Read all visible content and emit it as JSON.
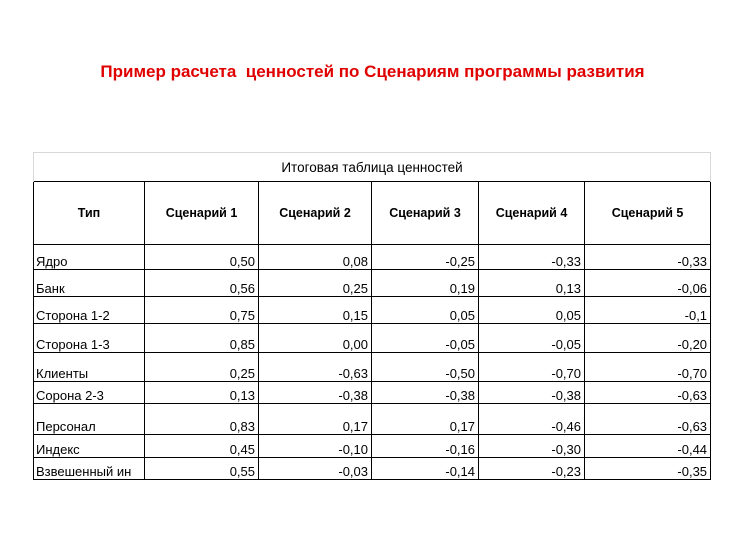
{
  "slide": {
    "title": "Пример расчета  ценностей по Сценариям программы развития"
  },
  "table": {
    "caption": "Итоговая  таблица ценностей",
    "columns": [
      "Тип",
      "Сценарий 1",
      "Сценарий 2",
      "Сценарий 3",
      "Сценарий 4",
      "Сценарий 5"
    ],
    "rows": [
      {
        "type": "Ядро",
        "values": [
          "0,50",
          "0,08",
          "-0,25",
          "-0,33",
          "-0,33"
        ]
      },
      {
        "type": "Банк",
        "values": [
          "0,56",
          "0,25",
          "0,19",
          "0,13",
          "-0,06"
        ]
      },
      {
        "type": "Сторона 1-2",
        "values": [
          "0,75",
          "0,15",
          "0,05",
          "0,05",
          "-0,1"
        ]
      },
      {
        "type": "Сторона 1-3",
        "values": [
          "0,85",
          "0,00",
          "-0,05",
          "-0,05",
          "-0,20"
        ]
      },
      {
        "type": "Клиенты",
        "values": [
          "0,25",
          "-0,63",
          "-0,50",
          "-0,70",
          "-0,70"
        ]
      },
      {
        "type": "Сорона 2-3",
        "values": [
          "0,13",
          "-0,38",
          "-0,38",
          "-0,38",
          "-0,63"
        ]
      },
      {
        "type": "Персонал",
        "values": [
          "0,83",
          "0,17",
          "0,17",
          "-0,46",
          "-0,63"
        ]
      },
      {
        "type": "Индекс",
        "values": [
          "0,45",
          "-0,10",
          "-0,16",
          "-0,30",
          "-0,44"
        ]
      },
      {
        "type": "Взвешенный ин",
        "values": [
          "0,55",
          "-0,03",
          "-0,14",
          "-0,23",
          "-0,35"
        ]
      }
    ]
  },
  "colors": {
    "title": "#e00000",
    "text": "#000000",
    "grid": "#000000"
  }
}
